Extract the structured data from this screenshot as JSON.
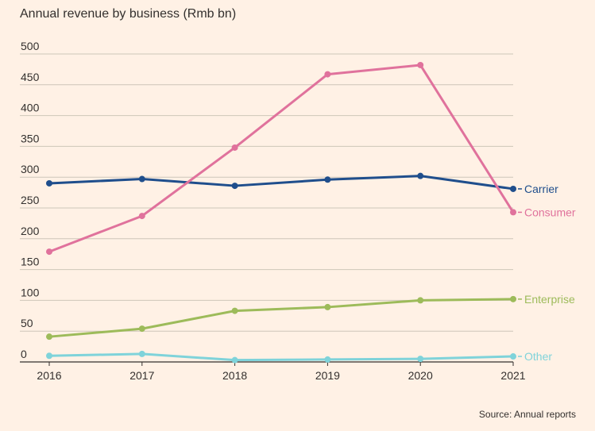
{
  "chart_data": {
    "type": "line",
    "title": "Annual revenue by business (Rmb bn)",
    "source": "Source: Annual reports",
    "x": [
      "2016",
      "2017",
      "2018",
      "2019",
      "2020",
      "2021"
    ],
    "ylim": [
      0,
      500
    ],
    "yticks": [
      "0",
      "50",
      "100",
      "150",
      "200",
      "250",
      "300",
      "350",
      "400",
      "450",
      "500"
    ],
    "grid": true,
    "legend": "inline-right",
    "series": [
      {
        "name": "Carrier",
        "color": "#1F4E8C",
        "values": [
          290,
          297,
          286,
          296,
          302,
          281
        ]
      },
      {
        "name": "Consumer",
        "color": "#E0729C",
        "values": [
          179,
          237,
          348,
          467,
          482,
          243
        ]
      },
      {
        "name": "Enterprise",
        "color": "#9DBB5A",
        "values": [
          41,
          54,
          83,
          89,
          100,
          102
        ]
      },
      {
        "name": "Other",
        "color": "#7FD3DA",
        "values": [
          10,
          13,
          3,
          4,
          5,
          9
        ]
      }
    ]
  }
}
